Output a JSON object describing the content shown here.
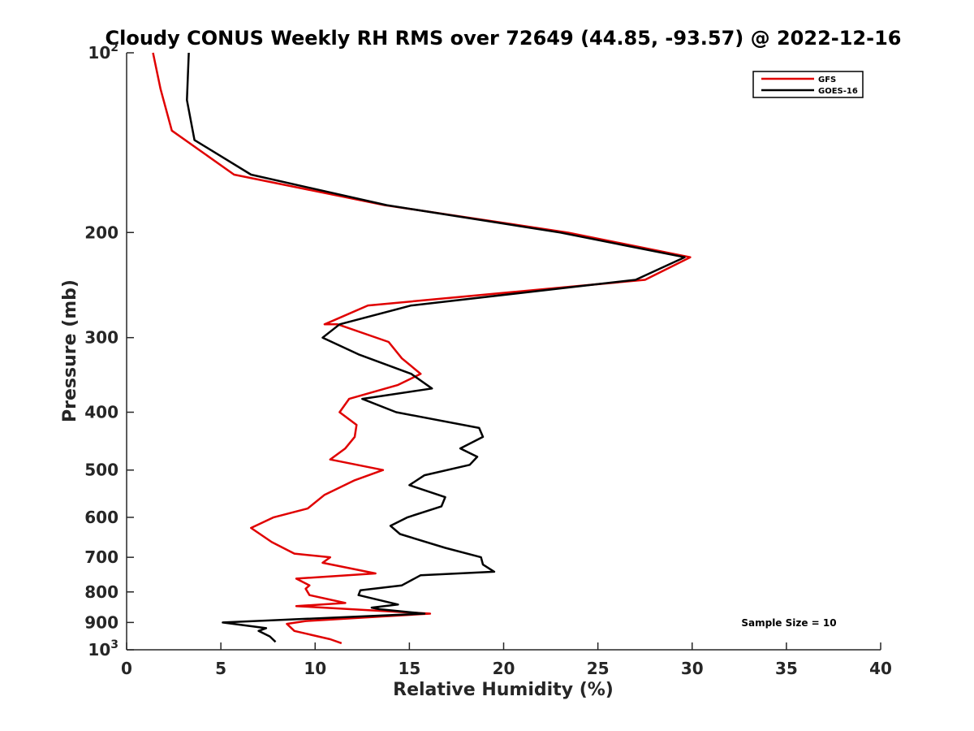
{
  "chart_data": {
    "type": "line",
    "title": "Cloudy CONUS Weekly RH RMS over 72649 (44.85, -93.57) @ 2022-12-16",
    "xlabel": "Relative Humidity (%)",
    "ylabel": "Pressure (mb)",
    "xlim": [
      0,
      40
    ],
    "ylim": [
      100,
      1000
    ],
    "y_scale": "log",
    "y_reversed": true,
    "x_ticks": [
      "0",
      "5",
      "10",
      "15",
      "20",
      "25",
      "30",
      "35",
      "40"
    ],
    "y_ticks": [
      {
        "value": 100,
        "base": "10",
        "exp": "2"
      },
      {
        "value": 200,
        "label": "200"
      },
      {
        "value": 300,
        "label": "300"
      },
      {
        "value": 400,
        "label": "400"
      },
      {
        "value": 500,
        "label": "500"
      },
      {
        "value": 600,
        "label": "600"
      },
      {
        "value": 700,
        "label": "700"
      },
      {
        "value": 800,
        "label": "800"
      },
      {
        "value": 900,
        "label": "900"
      },
      {
        "value": 1000,
        "base": "10",
        "exp": "3"
      }
    ],
    "grid": false,
    "legend_position": "top-right",
    "annotation": "Sample Size = 10",
    "series": [
      {
        "name": "GFS",
        "color": "#e00000",
        "points": [
          [
            1.4,
            100
          ],
          [
            1.8,
            115
          ],
          [
            2.4,
            135
          ],
          [
            5.7,
            160
          ],
          [
            13.7,
            180
          ],
          [
            23.4,
            200
          ],
          [
            29.9,
            220
          ],
          [
            27.5,
            240
          ],
          [
            12.8,
            265
          ],
          [
            10.5,
            285
          ],
          [
            11.2,
            285
          ],
          [
            13.9,
            305
          ],
          [
            14.6,
            325
          ],
          [
            15.6,
            345
          ],
          [
            14.4,
            360
          ],
          [
            11.8,
            380
          ],
          [
            11.3,
            400
          ],
          [
            12.2,
            420
          ],
          [
            12.1,
            440
          ],
          [
            11.6,
            460
          ],
          [
            10.8,
            480
          ],
          [
            13.6,
            500
          ],
          [
            12.1,
            520
          ],
          [
            10.5,
            550
          ],
          [
            9.6,
            580
          ],
          [
            7.8,
            600
          ],
          [
            6.6,
            625
          ],
          [
            7.7,
            660
          ],
          [
            8.9,
            690
          ],
          [
            10.8,
            700
          ],
          [
            10.4,
            715
          ],
          [
            13.2,
            745
          ],
          [
            9.0,
            760
          ],
          [
            9.7,
            780
          ],
          [
            9.5,
            790
          ],
          [
            9.7,
            810
          ],
          [
            11.6,
            835
          ],
          [
            9.0,
            845
          ],
          [
            16.1,
            870
          ],
          [
            9.5,
            895
          ],
          [
            8.5,
            905
          ],
          [
            8.9,
            930
          ],
          [
            10.8,
            960
          ],
          [
            11.4,
            975
          ]
        ]
      },
      {
        "name": "GOES-16",
        "color": "#000000",
        "points": [
          [
            3.3,
            100
          ],
          [
            3.2,
            120
          ],
          [
            3.6,
            140
          ],
          [
            6.6,
            160
          ],
          [
            13.8,
            180
          ],
          [
            23.0,
            200
          ],
          [
            29.6,
            220
          ],
          [
            27.0,
            240
          ],
          [
            15.1,
            265
          ],
          [
            11.3,
            285
          ],
          [
            10.4,
            300
          ],
          [
            12.3,
            320
          ],
          [
            15.1,
            345
          ],
          [
            16.2,
            365
          ],
          [
            12.5,
            380
          ],
          [
            14.3,
            400
          ],
          [
            18.7,
            425
          ],
          [
            18.9,
            440
          ],
          [
            17.7,
            460
          ],
          [
            18.6,
            475
          ],
          [
            18.2,
            490
          ],
          [
            15.8,
            510
          ],
          [
            15.0,
            530
          ],
          [
            16.9,
            555
          ],
          [
            16.7,
            575
          ],
          [
            14.9,
            600
          ],
          [
            14.0,
            620
          ],
          [
            14.5,
            640
          ],
          [
            16.9,
            675
          ],
          [
            18.8,
            700
          ],
          [
            18.9,
            720
          ],
          [
            19.5,
            740
          ],
          [
            15.6,
            750
          ],
          [
            14.6,
            780
          ],
          [
            12.4,
            795
          ],
          [
            12.3,
            810
          ],
          [
            14.4,
            840
          ],
          [
            13.0,
            850
          ],
          [
            13.4,
            855
          ],
          [
            14.2,
            860
          ],
          [
            15.8,
            870
          ],
          [
            5.1,
            900
          ],
          [
            7.4,
            920
          ],
          [
            7.0,
            930
          ],
          [
            7.6,
            950
          ],
          [
            7.9,
            970
          ]
        ]
      }
    ]
  }
}
